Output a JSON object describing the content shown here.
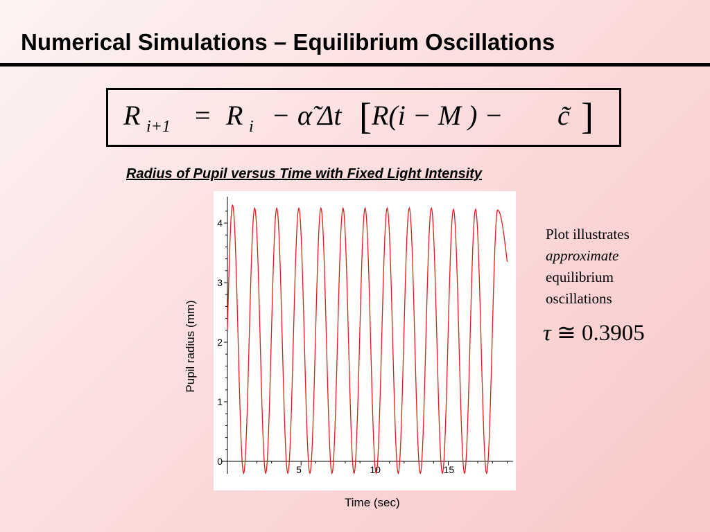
{
  "slide": {
    "title": "Numerical Simulations – Equilibrium Oscillations",
    "formula": {
      "lhs_var": "R",
      "lhs_sub": "i+1",
      "eq": "=",
      "r_var": "R",
      "r_sub": "i",
      "minus1": "−",
      "alpha": "α̃",
      "delta_t": "Δt",
      "lbracket": "[",
      "inner": "R(i − M ) − ",
      "c": "c̃",
      "rbracket": "]"
    },
    "plot_heading": "Radius of Pupil versus Time with Fixed Light Intensity",
    "note": {
      "line1": "Plot illustrates",
      "line2": "approximate",
      "line3": "equilibrium",
      "line4": "oscillations"
    },
    "tau": {
      "symbol": "τ",
      "approx": "≅",
      "value": "0.3905"
    }
  },
  "chart_data": {
    "type": "line",
    "title": "",
    "xlabel": "Time (sec)",
    "ylabel": "Pupil radius (mm)",
    "xlim": [
      0,
      19.4
    ],
    "ylim": [
      0,
      4.35
    ],
    "x_ticks": [
      5,
      10,
      15
    ],
    "y_ticks": [
      0,
      1,
      2,
      3,
      4
    ],
    "grid": false,
    "series": [
      {
        "color": "#e8191c",
        "peak_times": [
          0.35,
          1.85,
          3.35,
          4.85,
          6.35,
          7.85,
          9.35,
          10.85,
          12.35,
          13.85,
          15.35,
          16.85,
          18.35
        ],
        "peak_values": [
          4.3,
          4.25,
          4.25,
          4.25,
          4.25,
          4.25,
          4.25,
          4.25,
          4.25,
          4.25,
          4.23,
          4.23,
          4.22
        ],
        "trough_times": [
          1.1,
          2.6,
          4.1,
          5.6,
          7.1,
          8.6,
          10.1,
          11.6,
          13.1,
          14.6,
          16.1,
          17.6
        ],
        "trough_values": [
          -0.2,
          -0.2,
          -0.2,
          -0.2,
          -0.2,
          -0.2,
          -0.2,
          -0.2,
          -0.2,
          -0.2,
          -0.2,
          -0.2
        ],
        "start": [
          0,
          2.2
        ],
        "end": [
          19.0,
          3.35
        ]
      }
    ]
  }
}
